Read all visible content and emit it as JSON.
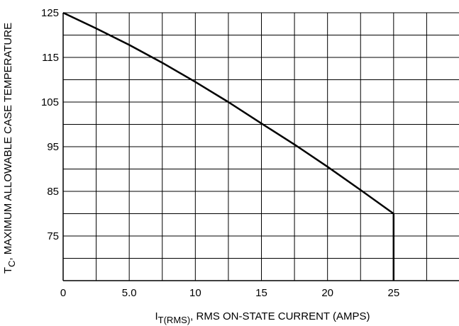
{
  "chart_data": {
    "type": "line",
    "xlabel": {
      "symbol": "I",
      "subscript": "T(RMS)",
      "text": ", RMS ON-STATE CURRENT (AMPS)"
    },
    "ylabel": {
      "symbol": "T",
      "subscript": "C",
      "text": ", MAXIMUM ALLOWABLE CASE TEMPERATURE"
    },
    "xlim": [
      0,
      30
    ],
    "ylim": [
      65,
      125
    ],
    "x_ticks": [
      "0",
      "5.0",
      "10",
      "15",
      "20",
      "25"
    ],
    "x_tick_values": [
      0,
      5,
      10,
      15,
      20,
      25
    ],
    "y_ticks": [
      "125",
      "115",
      "105",
      "95",
      "85",
      "75"
    ],
    "y_tick_values": [
      125,
      115,
      105,
      95,
      85,
      75
    ],
    "grid": true,
    "grid_x_step": 2.5,
    "grid_y_step": 5,
    "series": [
      {
        "points": [
          [
            0,
            125
          ],
          [
            2.5,
            121.5
          ],
          [
            5,
            117.8
          ],
          [
            7.5,
            113.8
          ],
          [
            10,
            109.5
          ],
          [
            12.5,
            105
          ],
          [
            15,
            100.2
          ],
          [
            17.5,
            95.5
          ],
          [
            20,
            90.5
          ],
          [
            22.5,
            85.3
          ],
          [
            25,
            80
          ],
          [
            25,
            65
          ]
        ]
      }
    ]
  }
}
